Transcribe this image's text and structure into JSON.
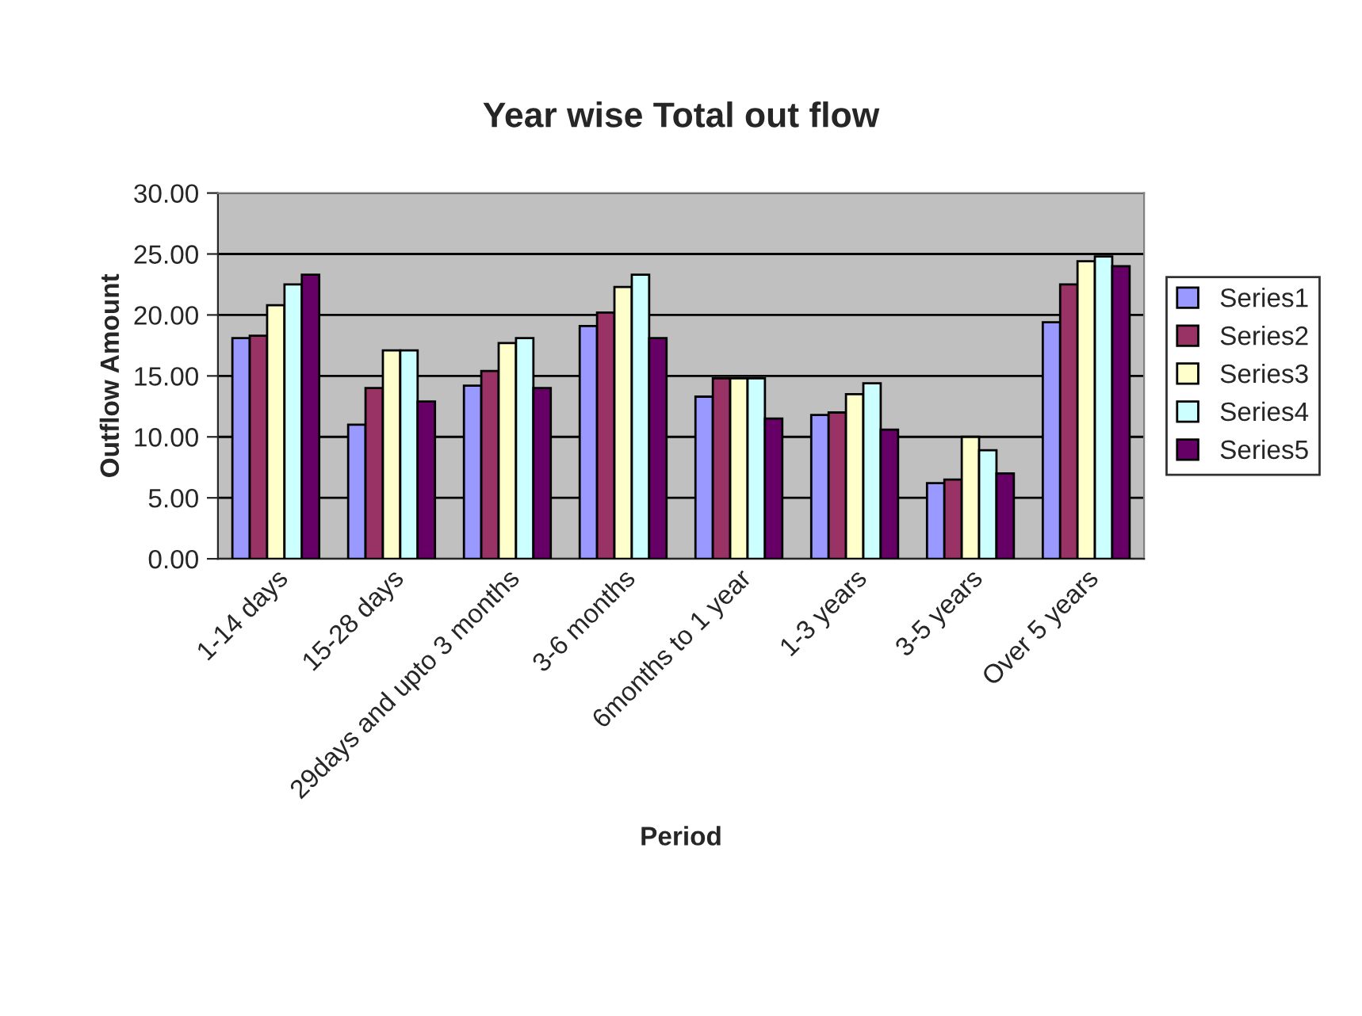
{
  "chart_data": {
    "type": "bar",
    "title": "Year wise Total out flow",
    "xlabel": "Period",
    "ylabel": "Outflow Amount",
    "categories": [
      "1-14 days",
      "15-28 days",
      "29days and upto 3 months",
      "3-6 months",
      "6months to 1 year",
      "1-3 years",
      "3-5 years",
      "Over 5 years"
    ],
    "series": [
      {
        "name": "Series1",
        "color": "#9999ff",
        "values": [
          18.1,
          11.0,
          14.2,
          19.1,
          13.3,
          11.8,
          6.2,
          19.4
        ]
      },
      {
        "name": "Series2",
        "color": "#993366",
        "values": [
          18.3,
          14.0,
          15.4,
          20.2,
          14.8,
          12.0,
          6.5,
          22.5
        ]
      },
      {
        "name": "Series3",
        "color": "#ffffcc",
        "values": [
          20.8,
          17.1,
          17.7,
          22.3,
          14.8,
          13.5,
          10.0,
          24.4
        ]
      },
      {
        "name": "Series4",
        "color": "#ccffff",
        "values": [
          22.5,
          17.1,
          18.1,
          23.3,
          14.8,
          14.4,
          8.9,
          24.8
        ]
      },
      {
        "name": "Series5",
        "color": "#660066",
        "values": [
          23.3,
          12.9,
          14.0,
          18.1,
          11.5,
          10.6,
          7.0,
          24.0
        ]
      }
    ],
    "ylim": [
      0,
      30
    ],
    "yticks": [
      {
        "value": 0,
        "label": "0.00"
      },
      {
        "value": 5,
        "label": "5.00"
      },
      {
        "value": 10,
        "label": "10.00"
      },
      {
        "value": 15,
        "label": "15.00"
      },
      {
        "value": 20,
        "label": "20.00"
      },
      {
        "value": 25,
        "label": "25.00"
      },
      {
        "value": 30,
        "label": "30.00"
      }
    ],
    "grid": "y",
    "legend": "right"
  }
}
